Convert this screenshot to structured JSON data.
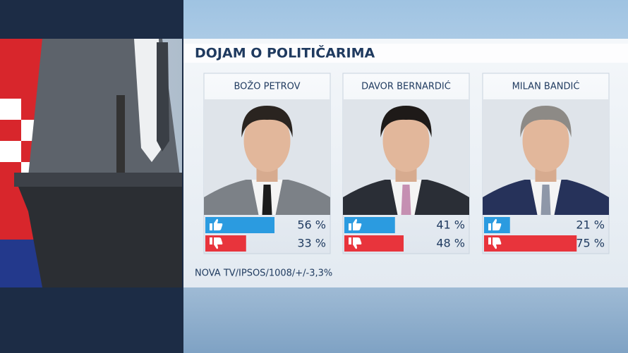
{
  "chart_data": {
    "type": "bar",
    "title": "DOJAM O POLITIČARIMA",
    "source": "NOVA TV/IPSOS/1008/+/-3,3%",
    "categories": [
      "BOŽO PETROV",
      "DAVOR BERNARDIĆ",
      "MILAN BANDIĆ"
    ],
    "series": [
      {
        "color": "#2b9be0",
        "values": [
          56,
          41,
          21
        ],
        "value_labels": [
          "56 %",
          "41 %",
          "21 %"
        ]
      },
      {
        "color": "#e8343c",
        "values": [
          33,
          48,
          75
        ],
        "value_labels": [
          "33 %",
          "48 %",
          "75 %"
        ]
      }
    ],
    "xlim": [
      0,
      100
    ]
  }
}
